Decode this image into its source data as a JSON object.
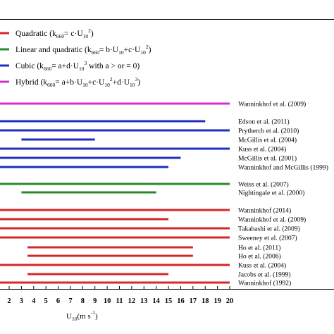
{
  "chart_data": {
    "type": "bar",
    "orientation": "horizontal-range",
    "xlabel": "U10 (m s-1)",
    "xlim": [
      1,
      20
    ],
    "x_ticks": [
      2,
      3,
      4,
      5,
      6,
      7,
      8,
      9,
      10,
      11,
      12,
      13,
      14,
      15,
      16,
      17,
      18,
      19,
      20
    ],
    "grid": false,
    "legend_placement": "top-left",
    "legend": [
      {
        "key": "quadratic",
        "color": "#d62728",
        "label": "Quadratic (k660= c·U10²)"
      },
      {
        "key": "linear_quadratic",
        "color": "#2a8a2a",
        "label": "Linear and quadratic (k660= b·U10+c·U10²)"
      },
      {
        "key": "cubic",
        "color": "#1f2fbf",
        "label": "Cubic (k660= a+d·U10³ with a > or = 0)"
      },
      {
        "key": "hybrid",
        "color": "#d12fd1",
        "label": "Hybrid (k660= a+b·U10+c·U10²+d·U10³)"
      }
    ],
    "series": [
      {
        "study": "Wanninkhof et al. (2009)",
        "type": "hybrid",
        "x_start": 0,
        "x_end": 20
      },
      {
        "study": "Edson et al. (2011)",
        "type": "cubic",
        "x_start": 0,
        "x_end": 18
      },
      {
        "study": "Prytherch et al. (2010)",
        "type": "cubic",
        "x_start": 0,
        "x_end": 20
      },
      {
        "study": "McGillis et al. (2004)",
        "type": "cubic",
        "x_start": 3,
        "x_end": 9
      },
      {
        "study": "Kuss et al. (2004)",
        "type": "cubic",
        "x_start": 0,
        "x_end": 20
      },
      {
        "study": "McGillis et al. (2001)",
        "type": "cubic",
        "x_start": 0,
        "x_end": 16
      },
      {
        "study": "Wanninkhof and McGillis (1999)",
        "type": "cubic",
        "x_start": 0,
        "x_end": 15
      },
      {
        "study": "Weiss et al. (2007)",
        "type": "linear_quadratic",
        "x_start": 0,
        "x_end": 20
      },
      {
        "study": "Nightingale et al. (2000)",
        "type": "linear_quadratic",
        "x_start": 3,
        "x_end": 14
      },
      {
        "study": "Wanninkhof (2014)",
        "type": "quadratic",
        "x_start": 0,
        "x_end": 20
      },
      {
        "study": "Wanninkhof et al. (2009)",
        "type": "quadratic",
        "x_start": 0,
        "x_end": 15
      },
      {
        "study": "Takahashi et al. (2009)",
        "type": "quadratic",
        "x_start": 0,
        "x_end": 20
      },
      {
        "study": "Sweeney et al. (2007)",
        "type": "quadratic",
        "x_start": 0,
        "x_end": 20
      },
      {
        "study": "Ho et al. (2011)",
        "type": "quadratic",
        "x_start": 3.5,
        "x_end": 17
      },
      {
        "study": "Ho et al. (2006)",
        "type": "quadratic",
        "x_start": 3.5,
        "x_end": 17
      },
      {
        "study": "Kuss et al. (2004)",
        "type": "quadratic",
        "x_start": 0,
        "x_end": 20
      },
      {
        "study": "Jacobs et al. (1999)",
        "type": "quadratic",
        "x_start": 3.5,
        "x_end": 15
      },
      {
        "study": "Wanninkhof (1992)",
        "type": "quadratic",
        "x_start": 0,
        "x_end": 20
      }
    ]
  }
}
